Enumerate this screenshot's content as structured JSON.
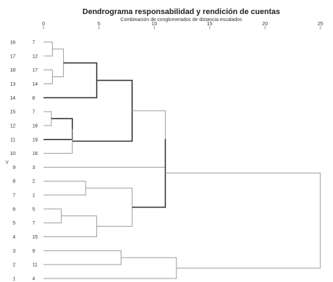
{
  "chart_data": {
    "type": "dendrogram",
    "title": "Dendrograma responsabilidad y rendición de cuentas",
    "subtitle": "Combinación de conglomerados de distancia escalados",
    "x_axis": {
      "ticks": [
        0,
        5,
        10,
        15,
        20,
        25
      ],
      "range": [
        0,
        25
      ]
    },
    "row_labels": [
      [
        "16",
        "7"
      ],
      [
        "17",
        "12"
      ],
      [
        "18",
        "17"
      ],
      [
        "13",
        "14"
      ],
      [
        "14",
        "8"
      ],
      [
        "15",
        "7"
      ],
      [
        "12",
        "18"
      ],
      [
        "11",
        "19"
      ],
      [
        "10",
        "16"
      ],
      [
        "9",
        "3"
      ],
      [
        "8",
        "2"
      ],
      [
        "7",
        "1"
      ],
      [
        "6",
        "5"
      ],
      [
        "5",
        "7"
      ],
      [
        "4",
        "15"
      ],
      [
        "3",
        "9"
      ],
      [
        "2",
        "11"
      ],
      [
        "1",
        "4"
      ]
    ],
    "side_label": "Y",
    "merges": [
      {
        "a": 0,
        "b": 1,
        "height": 0.8
      },
      {
        "a": 2,
        "b": 3,
        "height": 0.8
      },
      {
        "a": "m0",
        "b": "m1",
        "height": 1.8
      },
      {
        "a": 4,
        "b": "m2",
        "height": 4.8
      },
      {
        "a": 5,
        "b": 6,
        "height": 0.7
      },
      {
        "a": "m4",
        "b": 7,
        "height": 2.6
      },
      {
        "a": "m5",
        "b": 8,
        "height": 2.6
      },
      {
        "a": "m3",
        "b": "m6",
        "height": 8.0
      },
      {
        "a": "m7",
        "b": 9,
        "height": 11.0
      },
      {
        "a": 10,
        "b": 11,
        "height": 3.8
      },
      {
        "a": 12,
        "b": 13,
        "height": 1.6
      },
      {
        "a": "m10",
        "b": 14,
        "height": 4.8
      },
      {
        "a": "m9",
        "b": "m11",
        "height": 8.0
      },
      {
        "a": "m8",
        "b": "m12",
        "height": 11.0
      },
      {
        "a": 15,
        "b": 16,
        "height": 7.0
      },
      {
        "a": "m14",
        "b": 17,
        "height": 12.0
      },
      {
        "a": "m13",
        "b": "m15",
        "height": 25.0
      }
    ],
    "colors": {
      "line": "#9a9a9a",
      "heavy_line": "#333333",
      "text": "#333333"
    }
  }
}
